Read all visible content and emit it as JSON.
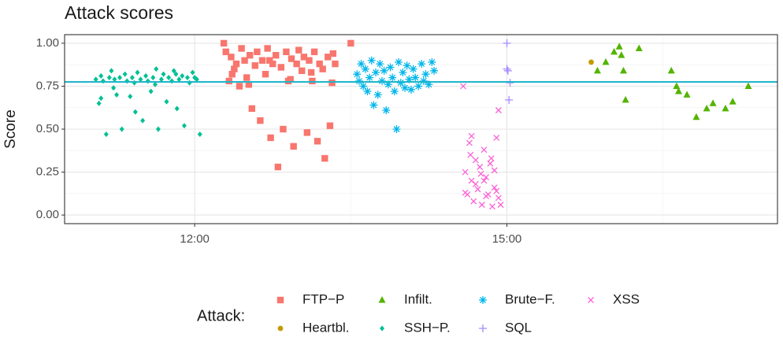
{
  "chart_data": {
    "type": "scatter",
    "title": "Attack scores",
    "y_label": "Score",
    "legend_title": "Attack:",
    "xlim": [
      10.75,
      17.6
    ],
    "xticks": [
      {
        "value": 12,
        "label": "12:00"
      },
      {
        "value": 15,
        "label": "15:00"
      }
    ],
    "ylim": [
      -0.05,
      1.05
    ],
    "yticks": [
      {
        "value": 0,
        "label": "0.00"
      },
      {
        "value": 0.25,
        "label": "0.25"
      },
      {
        "value": 0.5,
        "label": "0.50"
      },
      {
        "value": 0.75,
        "label": "0.75"
      },
      {
        "value": 1,
        "label": "1.00"
      }
    ],
    "grid": true,
    "legend": "bottom",
    "hline": {
      "value": 0.775,
      "color": "#1fb5c9"
    },
    "series": [
      {
        "name": "FTP−P",
        "color": "#F8766D",
        "shape": "square",
        "x": [
          12.28,
          12.3,
          12.33,
          12.35,
          12.38,
          12.4,
          12.43,
          12.45,
          12.48,
          12.5,
          12.53,
          12.55,
          12.58,
          12.6,
          12.63,
          12.65,
          12.68,
          12.7,
          12.73,
          12.75,
          12.78,
          12.8,
          12.83,
          12.85,
          12.88,
          12.9,
          12.93,
          12.95,
          12.98,
          13.0,
          13.03,
          13.05,
          13.08,
          13.1,
          13.13,
          13.15,
          13.18,
          13.2,
          13.23,
          13.25,
          13.28,
          13.3,
          13.33,
          13.35,
          13.5,
          12.36,
          12.52,
          12.72,
          12.92,
          13.12,
          13.32
        ],
        "values": [
          1.0,
          0.95,
          0.78,
          0.92,
          0.85,
          0.88,
          0.75,
          0.97,
          0.9,
          0.8,
          0.93,
          0.62,
          0.87,
          0.95,
          0.55,
          0.9,
          0.82,
          0.97,
          0.45,
          0.88,
          0.93,
          0.28,
          0.86,
          0.5,
          0.95,
          0.78,
          0.91,
          0.4,
          0.88,
          0.96,
          0.84,
          0.92,
          0.48,
          0.9,
          0.78,
          0.95,
          0.43,
          0.88,
          0.85,
          0.33,
          0.92,
          0.52,
          0.94,
          0.88,
          1.0,
          0.82,
          0.76,
          0.9,
          0.79,
          0.83,
          0.77
        ]
      },
      {
        "name": "Heartbl.",
        "color": "#C49A00",
        "shape": "circle",
        "x": [
          15.81
        ],
        "values": [
          0.89
        ]
      },
      {
        "name": "Infilt.",
        "color": "#53B400",
        "shape": "triangle",
        "x": [
          15.87,
          15.95,
          16.03,
          16.08,
          16.1,
          16.12,
          16.14,
          16.27,
          16.58,
          16.63,
          16.65,
          16.73,
          16.82,
          16.92,
          16.98,
          17.1,
          17.17,
          17.32
        ],
        "values": [
          0.84,
          0.89,
          0.95,
          0.98,
          0.93,
          0.84,
          0.67,
          0.97,
          0.84,
          0.75,
          0.72,
          0.7,
          0.57,
          0.62,
          0.65,
          0.62,
          0.66,
          0.75
        ]
      },
      {
        "name": "SSH−P.",
        "color": "#00C094",
        "shape": "diamond",
        "x": [
          11.05,
          11.08,
          11.1,
          11.12,
          11.15,
          11.18,
          11.2,
          11.23,
          11.25,
          11.28,
          11.3,
          11.33,
          11.35,
          11.38,
          11.4,
          11.43,
          11.45,
          11.48,
          11.5,
          11.53,
          11.55,
          11.58,
          11.6,
          11.63,
          11.65,
          11.68,
          11.7,
          11.73,
          11.75,
          11.78,
          11.8,
          11.83,
          11.85,
          11.88,
          11.9,
          11.93,
          11.95,
          11.98,
          12.0,
          12.05,
          11.1,
          11.22,
          11.42,
          11.62,
          11.82,
          12.02
        ],
        "values": [
          0.79,
          0.65,
          0.81,
          0.78,
          0.47,
          0.8,
          0.84,
          0.79,
          0.7,
          0.8,
          0.5,
          0.82,
          0.78,
          0.69,
          0.8,
          0.6,
          0.83,
          0.79,
          0.55,
          0.81,
          0.78,
          0.72,
          0.8,
          0.85,
          0.5,
          0.79,
          0.82,
          0.66,
          0.8,
          0.78,
          0.84,
          0.62,
          0.79,
          0.81,
          0.52,
          0.8,
          0.77,
          0.83,
          0.8,
          0.47,
          0.68,
          0.74,
          0.77,
          0.76,
          0.82,
          0.79
        ]
      },
      {
        "name": "Brute−F.",
        "color": "#00B6EB",
        "shape": "asterisk",
        "x": [
          13.56,
          13.58,
          13.6,
          13.62,
          13.64,
          13.66,
          13.68,
          13.7,
          13.72,
          13.74,
          13.76,
          13.78,
          13.8,
          13.82,
          13.84,
          13.86,
          13.88,
          13.9,
          13.92,
          13.94,
          13.96,
          13.98,
          14.0,
          14.02,
          14.04,
          14.06,
          14.08,
          14.1,
          14.12,
          14.15,
          14.18,
          14.2,
          14.22,
          14.25,
          14.28,
          14.3
        ],
        "values": [
          0.82,
          0.78,
          0.88,
          0.75,
          0.85,
          0.72,
          0.8,
          0.9,
          0.64,
          0.83,
          0.7,
          0.88,
          0.78,
          0.84,
          0.61,
          0.76,
          0.86,
          0.8,
          0.72,
          0.5,
          0.89,
          0.77,
          0.83,
          0.74,
          0.87,
          0.79,
          0.73,
          0.85,
          0.8,
          0.75,
          0.88,
          0.78,
          0.82,
          0.76,
          0.89,
          0.84
        ]
      },
      {
        "name": "SQL",
        "color": "#A58AFF",
        "shape": "plus",
        "x": [
          15.0,
          15.0,
          15.01,
          15.02,
          15.03
        ],
        "values": [
          1.0,
          0.85,
          0.84,
          0.67,
          0.77
        ]
      },
      {
        "name": "XSS",
        "color": "#FB61D7",
        "shape": "cross",
        "x": [
          14.58,
          14.6,
          14.62,
          14.64,
          14.66,
          14.68,
          14.7,
          14.72,
          14.74,
          14.76,
          14.78,
          14.8,
          14.82,
          14.84,
          14.86,
          14.88,
          14.9,
          14.92,
          14.94,
          14.6,
          14.65,
          14.7,
          14.75,
          14.8,
          14.85,
          14.9,
          14.92,
          14.66,
          14.78,
          14.88
        ],
        "values": [
          0.75,
          0.25,
          0.12,
          0.42,
          0.2,
          0.08,
          0.32,
          0.15,
          0.28,
          0.06,
          0.38,
          0.22,
          0.12,
          0.3,
          0.05,
          0.26,
          0.45,
          0.1,
          0.06,
          0.13,
          0.35,
          0.18,
          0.24,
          0.11,
          0.33,
          0.14,
          0.61,
          0.46,
          0.2,
          0.16
        ]
      }
    ]
  }
}
